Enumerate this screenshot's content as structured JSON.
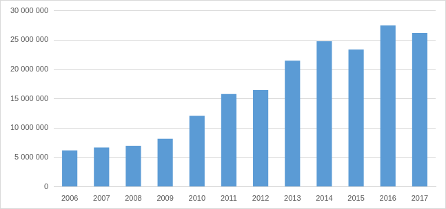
{
  "chart_data": {
    "type": "bar",
    "categories": [
      "2006",
      "2007",
      "2008",
      "2009",
      "2010",
      "2011",
      "2012",
      "2013",
      "2014",
      "2015",
      "2016",
      "2017"
    ],
    "values": [
      6200000,
      6700000,
      7000000,
      8200000,
      12100000,
      15800000,
      16500000,
      21500000,
      24800000,
      23400000,
      27500000,
      26200000
    ],
    "color": "#5b9bd5",
    "ylim": [
      0,
      30000000
    ],
    "yticks": [
      0,
      {
        "value": 5000000,
        "label": "5 000 000"
      },
      {
        "value": 10000000,
        "label": "10 000 000"
      },
      {
        "value": 15000000,
        "label": "15 000 000"
      },
      {
        "value": 20000000,
        "label": "20 000 000"
      },
      {
        "value": 25000000,
        "label": "25 000 000"
      },
      {
        "value": 30000000,
        "label": "30 000 000"
      }
    ],
    "grid": true
  }
}
